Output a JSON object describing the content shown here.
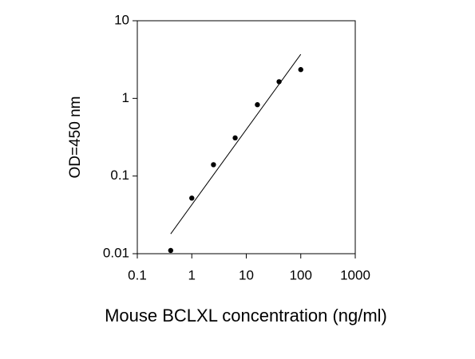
{
  "chart_data": {
    "type": "scatter",
    "x_label": "Mouse BCLXL concentration (ng/ml)",
    "y_label": "OD=450 nm",
    "x": [
      0.41,
      1,
      2.5,
      6.25,
      16,
      40,
      100
    ],
    "values": [
      0.011,
      0.052,
      0.14,
      0.31,
      0.83,
      1.64,
      2.35
    ],
    "color": "#000000",
    "fit_line": {
      "x": [
        0.41,
        100
      ],
      "values": [
        0.018,
        3.7
      ]
    },
    "xlog": true,
    "ylog": true,
    "xlim": [
      0.1,
      1000
    ],
    "ylim": [
      0.01,
      10
    ],
    "xticks": [
      0.1,
      1,
      10,
      100,
      1000
    ],
    "yticks": [
      0.01,
      0.1,
      1,
      10
    ]
  }
}
